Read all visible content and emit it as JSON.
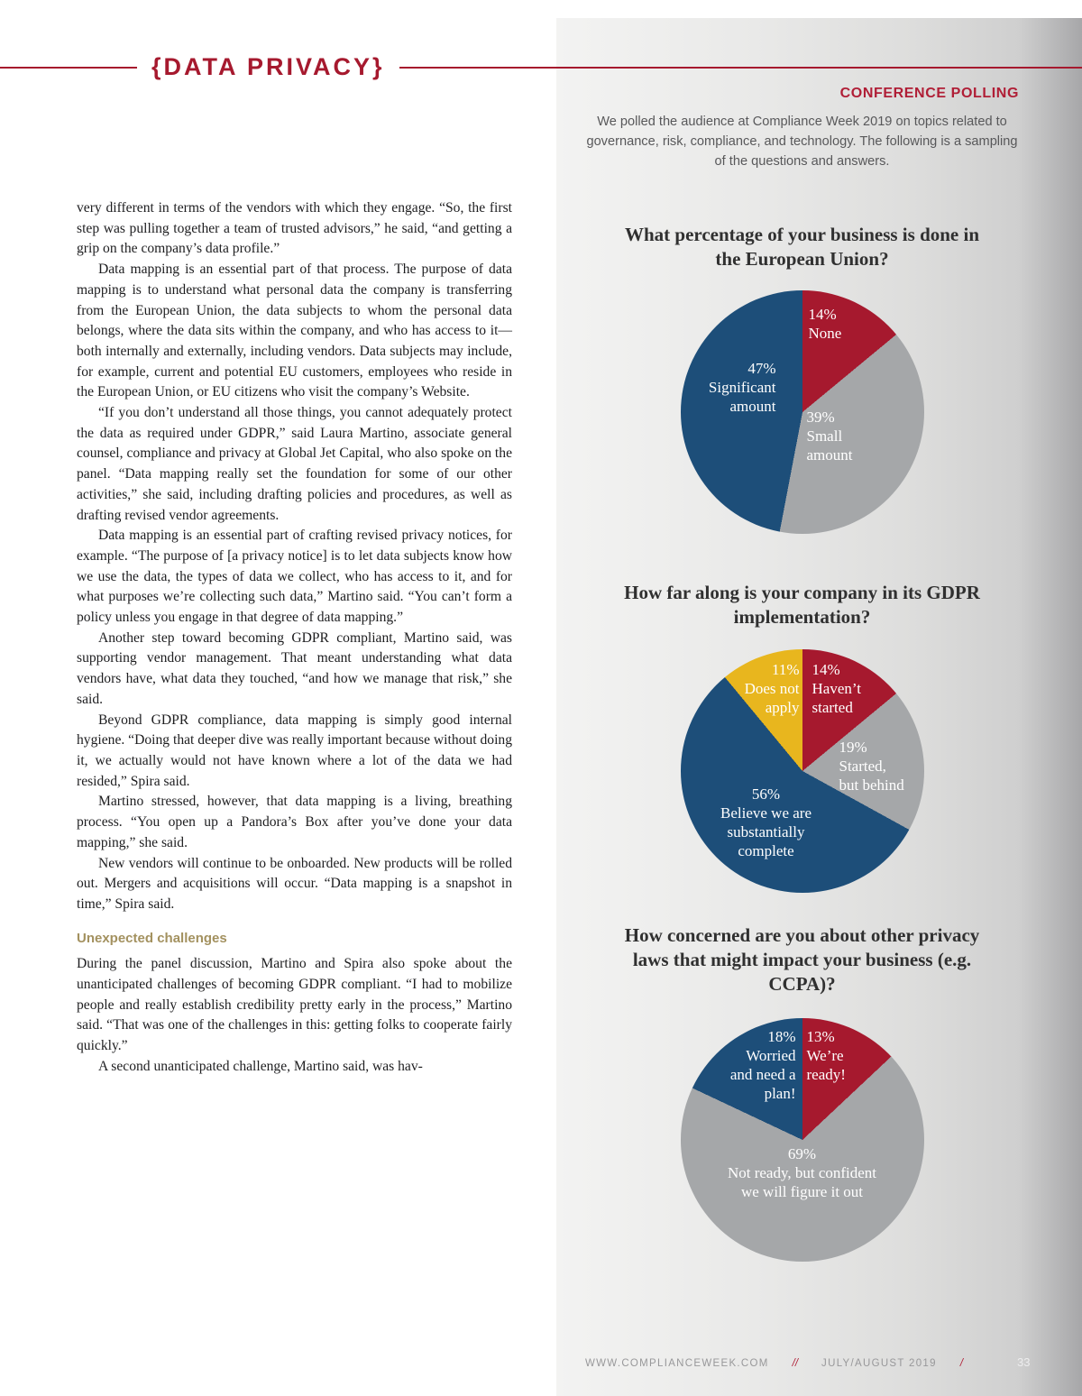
{
  "page": {
    "section_title": "{DATA PRIVACY}",
    "footer": {
      "site": "WWW.COMPLIANCEWEEK.COM",
      "sep1": "//",
      "issue": "JULY/AUGUST 2019",
      "sep2": "/",
      "page_number": "33"
    }
  },
  "polling": {
    "heading": "CONFERENCE POLLING",
    "intro": "We polled the audience at Compliance Week 2019 on topics related to governance, risk, compliance, and technology. The following is a sampling of the questions and answers."
  },
  "article": {
    "paragraphs": [
      "very different in terms of the vendors with which they engage. “So, the first step was pulling together a team of trusted advisors,” he said, “and getting a grip on the company’s data profile.”",
      "Data mapping is an essential part of that process. The purpose of data mapping is to understand what personal data the company is transferring from the European Union, the data subjects to whom the personal data belongs, where the data sits within the company, and who has access to it—both internally and externally, including vendors. Data subjects may include, for example, current and potential EU customers, employees who reside in the European Union, or EU citizens who visit the company’s Website.",
      "“If you don’t understand all those things, you cannot adequately protect the data as required under GDPR,” said Laura Martino, associate general counsel, compliance and privacy at Global Jet Capital, who also spoke on the panel. “Data mapping really set the foundation for some of our other activities,” she said, including drafting policies and procedures, as well as drafting revised vendor agreements.",
      "Data mapping is an essential part of crafting revised privacy notices, for example. “The purpose of [a privacy notice] is to let data subjects know how we use the data, the types of data we collect, who has access to it, and for what purposes we’re collecting such data,” Martino said. “You can’t form a policy unless you engage in that degree of data mapping.”",
      "Another step toward becoming GDPR compliant, Martino said, was supporting vendor management. That meant understanding what data vendors have, what data they touched, “and how we manage that risk,” she said.",
      "Beyond GDPR compliance, data mapping is simply good internal hygiene. “Doing that deeper dive was really important because without doing it, we actually would not have known where a lot of the data we had resided,” Spira said.",
      "Martino stressed, however, that data mapping is a living, breathing process. “You open up a Pandora’s Box after you’ve done your data mapping,” she said.",
      "New vendors will continue to be onboarded. New products will be rolled out. Mergers and acquisitions will occur. “Data mapping is a snapshot in time,” Spira said."
    ],
    "subhead": "Unexpected challenges",
    "paragraphs_after": [
      "During the panel discussion, Martino and Spira also spoke about the unanticipated challenges of becoming GDPR compliant. “I had to mobilize people and really establish credibility pretty early in the process,” Martino said. “That was one of the challenges in this: getting folks to cooperate fairly quickly.”",
      "A second unanticipated challenge, Martino said, was hav-"
    ]
  },
  "colors": {
    "accent_red": "#a6192e",
    "blue": "#1d4e79",
    "gray": "#a5a7a9",
    "gold": "#e8b61e",
    "subhead_tan": "#a3915f"
  },
  "chart_data": [
    {
      "type": "pie",
      "title": "What percentage of your business is done in the European Union?",
      "legend_position": "on-slices",
      "slices": [
        {
          "label": "None",
          "pct": "14%",
          "value": 14,
          "color": "#a6192e"
        },
        {
          "label": "Small\namount",
          "pct": "39%",
          "value": 39,
          "color": "#a5a7a9"
        },
        {
          "label": "Significant\namount",
          "pct": "47%",
          "value": 47,
          "color": "#1d4e79"
        }
      ]
    },
    {
      "type": "pie",
      "title": "How far along is your company in its GDPR implementation?",
      "legend_position": "on-slices",
      "slices": [
        {
          "label": "Haven’t\nstarted",
          "pct": "14%",
          "value": 14,
          "color": "#a6192e"
        },
        {
          "label": "Started,\nbut behind",
          "pct": "19%",
          "value": 19,
          "color": "#a5a7a9"
        },
        {
          "label": "Believe we are\nsubstantially\ncomplete",
          "pct": "56%",
          "value": 56,
          "color": "#1d4e79"
        },
        {
          "label": "Does not\napply",
          "pct": "11%",
          "value": 11,
          "color": "#e8b61e"
        }
      ]
    },
    {
      "type": "pie",
      "title": "How concerned are you about other privacy laws that might impact your business (e.g. CCPA)?",
      "legend_position": "on-slices",
      "slices": [
        {
          "label": "We’re\nready!",
          "pct": "13%",
          "value": 13,
          "color": "#a6192e"
        },
        {
          "label": "Not ready, but confident\nwe will figure it out",
          "pct": "69%",
          "value": 69,
          "color": "#a5a7a9"
        },
        {
          "label": "Worried\nand need a\nplan!",
          "pct": "18%",
          "value": 18,
          "color": "#1d4e79"
        }
      ]
    }
  ]
}
